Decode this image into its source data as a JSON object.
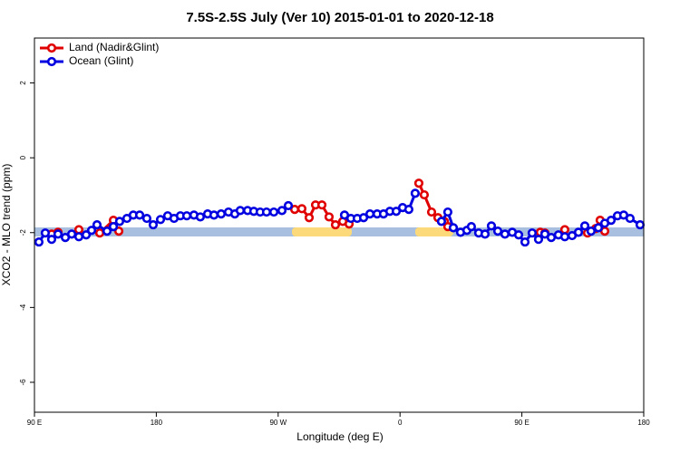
{
  "chart_data": {
    "type": "line",
    "title": "7.5S-2.5S July (Ver 10)   2015-01-01 to 2020-12-18",
    "x_label": "Longitude (deg E)",
    "y_label": "XCO2 - MLO trend (ppm)",
    "xlim": [
      90,
      540
    ],
    "ylim": [
      -6.8,
      3.2
    ],
    "xticks": [
      {
        "value": 90,
        "label": "90 E"
      },
      180,
      {
        "value": 270,
        "label": "90 W"
      },
      {
        "value": 360,
        "label": "0"
      },
      {
        "value": 450,
        "label": "90 E"
      },
      {
        "value": 540,
        "label": "180"
      }
    ],
    "yticks": [
      2,
      0,
      -2,
      -4,
      -6
    ],
    "legend": "top-left",
    "series": [
      {
        "name": "Land (Nadir&Glint)",
        "color": "#e00000",
        "x": [
          102.7,
          107.4,
          115,
          122.8,
          130,
          138.2,
          148.3,
          152.3,
          230,
          282.2,
          287.5,
          292.9,
          297.6,
          302.3,
          307.6,
          312.3,
          317.7,
          322.4,
          350,
          373.9,
          377.9,
          383.3,
          388.0,
          392.7,
          395.3,
          430,
          463.6,
          467.0,
          475,
          481.7,
          490,
          498.5,
          504.5,
          507.8,
          511.2
        ],
        "values": [
          -2.04,
          -1.99,
          null,
          -1.92,
          null,
          -2.01,
          -1.67,
          -1.96,
          null,
          -1.38,
          -1.36,
          -1.6,
          -1.26,
          -1.26,
          -1.58,
          -1.79,
          -1.7,
          -1.77,
          null,
          -0.68,
          -0.99,
          -1.45,
          -1.6,
          -1.7,
          -1.84,
          null,
          -1.99,
          -2.01,
          null,
          -1.92,
          null,
          -2.01,
          -1.89,
          -1.67,
          -1.96
        ]
      },
      {
        "name": "Ocean (Glint)",
        "color": "#0000e0",
        "x": [
          93.3,
          98.0,
          102.7,
          107.4,
          112.8,
          117.5,
          122.8,
          128.2,
          132.2,
          136.2,
          143.6,
          148.3,
          152.9,
          158.3,
          163.0,
          167.7,
          173.0,
          177.7,
          183.1,
          188.4,
          193.1,
          197.8,
          202.5,
          207.8,
          212.5,
          217.9,
          222.6,
          227.9,
          233.3,
          238.0,
          242.0,
          247.4,
          252.0,
          256.7,
          261.4,
          266.8,
          272.8,
          277.5,
          300,
          319.0,
          323.7,
          328.4,
          333.1,
          337.8,
          343.1,
          347.8,
          352.5,
          357.2,
          361.9,
          366.5,
          371.2,
          380,
          390.6,
          395.3,
          399.4,
          404.7,
          409.4,
          412.7,
          418.1,
          422.8,
          427.5,
          432.2,
          437.5,
          442.9,
          447.6,
          452.3,
          457.6,
          462.3,
          467.0,
          471.7,
          477.0,
          481.7,
          487.1,
          491.8,
          496.5,
          501.1,
          506.5,
          511.2,
          515.9,
          520.6,
          525.2,
          529.9,
          537.3
        ],
        "values": [
          -2.25,
          -2.01,
          -2.18,
          -2.04,
          -2.13,
          -2.04,
          -2.11,
          -2.06,
          -1.94,
          -1.79,
          -1.96,
          -1.84,
          -1.7,
          -1.62,
          -1.53,
          -1.53,
          -1.62,
          -1.79,
          -1.65,
          -1.55,
          -1.62,
          -1.55,
          -1.55,
          -1.53,
          -1.58,
          -1.5,
          -1.53,
          -1.5,
          -1.45,
          -1.5,
          -1.41,
          -1.41,
          -1.43,
          -1.45,
          -1.45,
          -1.45,
          -1.41,
          -1.28,
          null,
          -1.53,
          -1.62,
          -1.62,
          -1.6,
          -1.5,
          -1.5,
          -1.5,
          -1.43,
          -1.43,
          -1.33,
          -1.38,
          -0.95,
          null,
          -1.7,
          -1.45,
          -1.87,
          -1.99,
          -1.94,
          -1.84,
          -2.01,
          -2.04,
          -1.82,
          -1.96,
          -2.04,
          -1.99,
          -2.06,
          -2.25,
          -2.01,
          -2.18,
          -2.04,
          -2.13,
          -2.06,
          -2.11,
          -2.08,
          -1.99,
          -1.82,
          -1.96,
          -1.87,
          -1.75,
          -1.67,
          -1.55,
          -1.53,
          -1.62,
          -1.79
        ]
      }
    ]
  }
}
